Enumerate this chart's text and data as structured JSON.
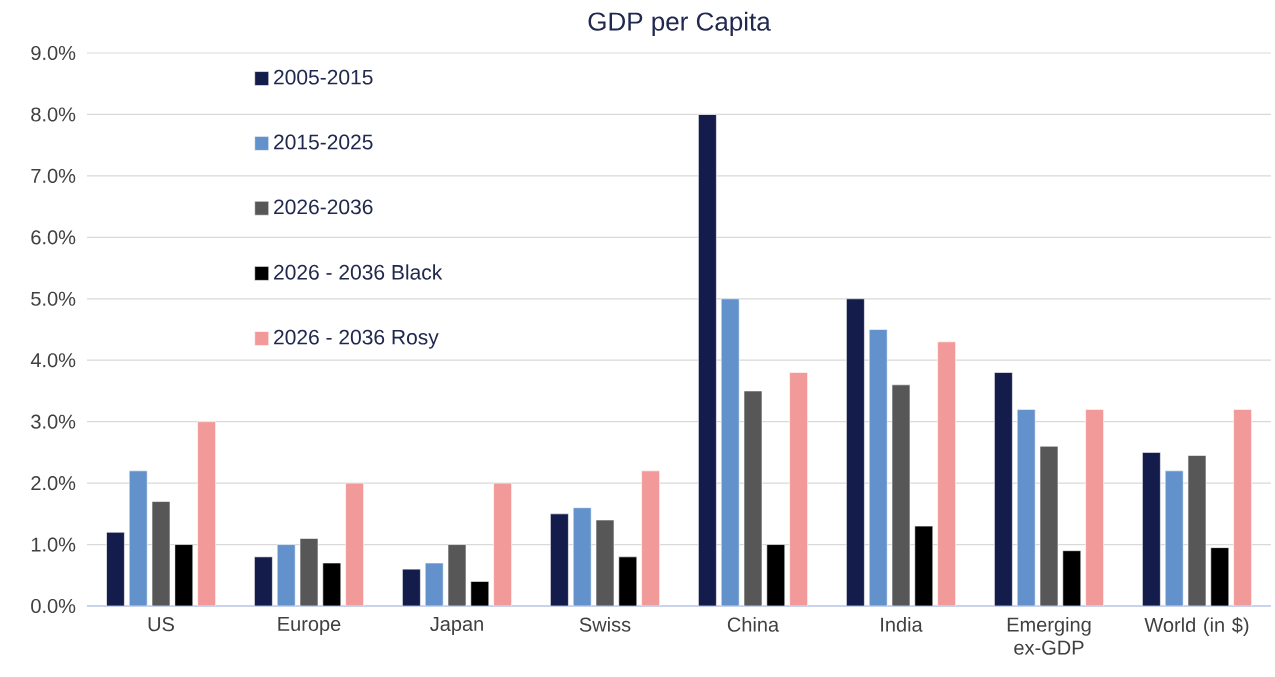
{
  "chart_data": {
    "type": "bar",
    "title": "GDP per Capita",
    "categories": [
      "US",
      "Europe",
      "Japan",
      "Swiss",
      "China",
      "India",
      "Emerging ex-GDP",
      "World (in $)"
    ],
    "series": [
      {
        "name": "2005-2015",
        "color": "#141c4c",
        "values": [
          1.2,
          0.8,
          0.6,
          1.5,
          8.0,
          5.0,
          3.8,
          2.5
        ]
      },
      {
        "name": "2015-2025",
        "color": "#6391cb",
        "values": [
          2.2,
          1.0,
          0.7,
          1.6,
          5.0,
          4.5,
          3.2,
          2.2
        ]
      },
      {
        "name": "2026-2036",
        "color": "#575757",
        "values": [
          1.7,
          1.1,
          1.0,
          1.4,
          3.5,
          3.6,
          2.6,
          2.45
        ]
      },
      {
        "name": "2026 - 2036 Black",
        "color": "#000000",
        "values": [
          1.0,
          0.7,
          0.4,
          0.8,
          1.0,
          1.3,
          0.9,
          0.95
        ]
      },
      {
        "name": "2026 - 2036 Rosy",
        "color": "#f29a99",
        "values": [
          3.0,
          2.0,
          2.0,
          2.2,
          3.8,
          4.3,
          3.2,
          3.2
        ]
      }
    ],
    "ylim": [
      0,
      9
    ],
    "yticks": [
      {
        "value": 0,
        "label": "0.0%"
      },
      {
        "value": 1,
        "label": "1.0%"
      },
      {
        "value": 2,
        "label": "2.0%"
      },
      {
        "value": 3,
        "label": "3.0%"
      },
      {
        "value": 4,
        "label": "4.0%"
      },
      {
        "value": 5,
        "label": "5.0%"
      },
      {
        "value": 6,
        "label": "6.0%"
      },
      {
        "value": 7,
        "label": "7.0%"
      },
      {
        "value": 8,
        "label": "8.0%"
      },
      {
        "value": 9,
        "label": "9.0%"
      }
    ],
    "grid": "y",
    "legend": "top left"
  }
}
